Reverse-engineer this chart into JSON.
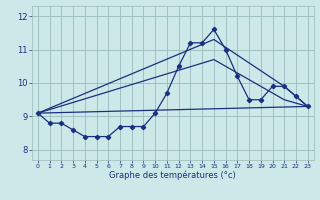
{
  "title": "",
  "xlabel": "Graphe des températures (°c)",
  "xlim": [
    -0.5,
    23.5
  ],
  "ylim": [
    7.7,
    12.3
  ],
  "bg_color": "#cce8e8",
  "line_color": "#1a3080",
  "grid_color": "#99bbbb",
  "series": {
    "main": {
      "x": [
        0,
        1,
        2,
        3,
        4,
        5,
        6,
        7,
        8,
        9,
        10,
        11,
        12,
        13,
        14,
        15,
        16,
        17,
        18,
        19,
        20,
        21,
        22,
        23
      ],
      "y": [
        9.1,
        8.8,
        8.8,
        8.6,
        8.4,
        8.4,
        8.4,
        8.7,
        8.7,
        8.7,
        9.1,
        9.7,
        10.5,
        11.2,
        11.2,
        11.6,
        11.0,
        10.2,
        9.5,
        9.5,
        9.9,
        9.9,
        9.6,
        9.3
      ]
    },
    "trend1": {
      "x": [
        0,
        15,
        21,
        23
      ],
      "y": [
        9.1,
        11.3,
        9.9,
        9.3
      ]
    },
    "trend2": {
      "x": [
        0,
        15,
        21,
        23
      ],
      "y": [
        9.1,
        10.7,
        9.5,
        9.3
      ]
    },
    "trend3": {
      "x": [
        0,
        23
      ],
      "y": [
        9.1,
        9.3
      ]
    }
  },
  "xticks": [
    0,
    1,
    2,
    3,
    4,
    5,
    6,
    7,
    8,
    9,
    10,
    11,
    12,
    13,
    14,
    15,
    16,
    17,
    18,
    19,
    20,
    21,
    22,
    23
  ],
  "yticks": [
    8,
    9,
    10,
    11,
    12
  ]
}
